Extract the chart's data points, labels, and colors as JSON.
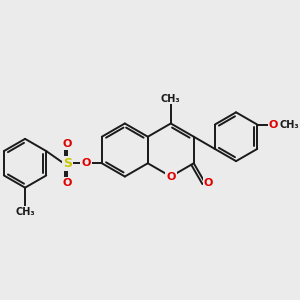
{
  "background_color": "#ebebeb",
  "bond_color": "#1a1a1a",
  "bond_width": 1.4,
  "dbo": 0.055,
  "atom_colors": {
    "O": "#e00000",
    "S": "#c8c800",
    "C": "#1a1a1a"
  },
  "figsize": [
    3.0,
    3.0
  ],
  "dpi": 100,
  "xlim": [
    -2.6,
    2.6
  ],
  "ylim": [
    -1.6,
    1.6
  ]
}
